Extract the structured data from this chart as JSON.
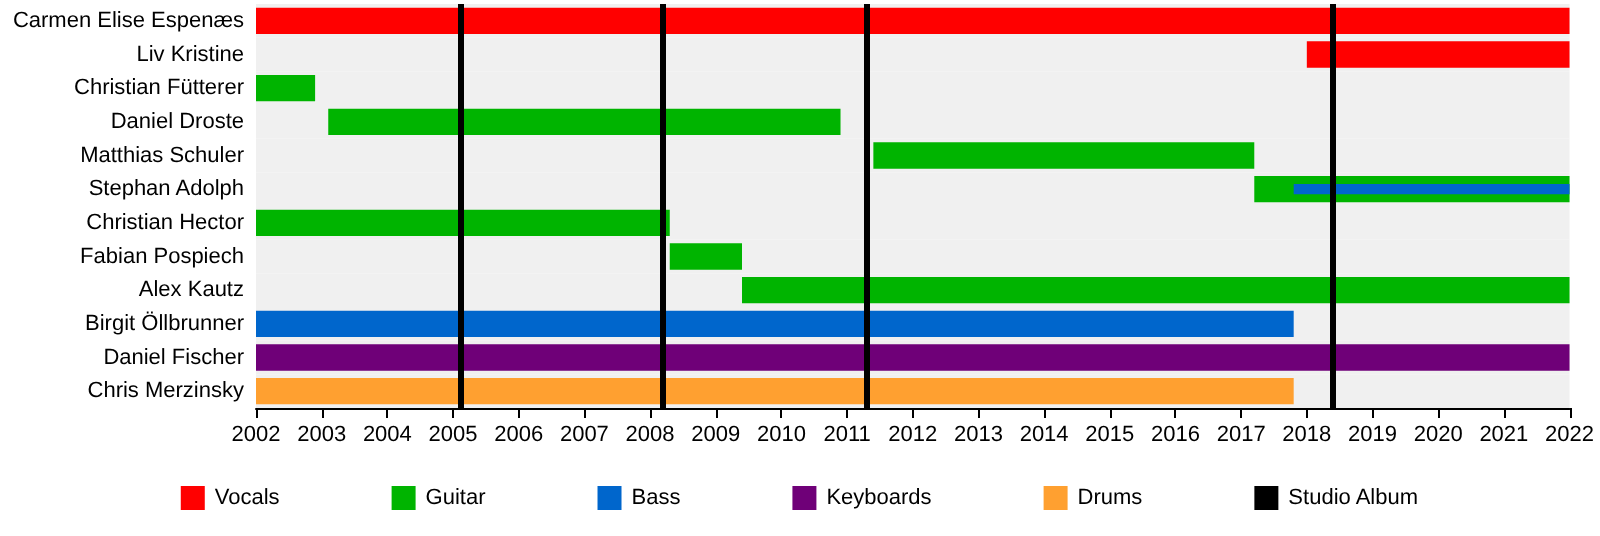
{
  "chart_data": {
    "type": "bar",
    "orientation": "horizontal",
    "categories": [
      "Carmen Elise Espenæs",
      "Liv Kristine",
      "Christian Fütterer",
      "Daniel Droste",
      "Matthias Schuler",
      "Stephan Adolph",
      "Christian Hector",
      "Fabian Pospiech",
      "Alex Kautz",
      "Birgit Öllbrunner",
      "Daniel Fischer",
      "Chris Merzinsky"
    ],
    "series": [
      {
        "name": "Vocals",
        "color": "#ff0000",
        "base": [
          2002,
          2018.0,
          null,
          null,
          null,
          null,
          null,
          null,
          null,
          null,
          null,
          null
        ],
        "values": [
          20,
          4.0,
          null,
          null,
          null,
          null,
          null,
          null,
          null,
          null,
          null,
          null
        ]
      },
      {
        "name": "Guitar",
        "color": "#00b400",
        "base": [
          null,
          null,
          2002,
          2003.1,
          2011.4,
          2017.2,
          2002,
          2008.3,
          2009.4,
          null,
          null,
          null
        ],
        "values": [
          null,
          null,
          0.9,
          7.8,
          5.8,
          4.8,
          6.3,
          1.1,
          12.6,
          null,
          null,
          null
        ]
      },
      {
        "name": "Bass",
        "color": "#0066cc",
        "base": [
          null,
          null,
          null,
          null,
          null,
          2017.8,
          null,
          null,
          null,
          2002,
          null,
          null
        ],
        "values": [
          null,
          null,
          null,
          null,
          null,
          4.2,
          null,
          null,
          null,
          15.8,
          null,
          null
        ]
      },
      {
        "name": "Keyboards",
        "color": "#6f0078",
        "base": [
          null,
          null,
          null,
          null,
          null,
          null,
          null,
          null,
          null,
          null,
          2002,
          null
        ],
        "values": [
          null,
          null,
          null,
          null,
          null,
          null,
          null,
          null,
          null,
          null,
          20,
          null
        ]
      },
      {
        "name": "Drums",
        "color": "#ffa030",
        "base": [
          null,
          null,
          null,
          null,
          null,
          null,
          null,
          null,
          null,
          null,
          null,
          2002
        ],
        "values": [
          null,
          null,
          null,
          null,
          null,
          null,
          null,
          null,
          null,
          null,
          null,
          15.8
        ]
      }
    ],
    "ref_lines": [
      {
        "axis": "x",
        "value": 2005.1,
        "label": "Studio Album",
        "color": "#000000"
      },
      {
        "axis": "x",
        "value": 2008.2,
        "color": "#000000"
      },
      {
        "axis": "x",
        "value": 2011.3,
        "color": "#000000"
      },
      {
        "axis": "x",
        "value": 2018.4,
        "color": "#000000"
      }
    ],
    "xlim": [
      2002,
      2022
    ],
    "xticks": [
      2002,
      2003,
      2004,
      2005,
      2006,
      2007,
      2008,
      2009,
      2010,
      2011,
      2012,
      2013,
      2014,
      2015,
      2016,
      2017,
      2018,
      2019,
      2020,
      2021,
      2022
    ],
    "grid": false,
    "legend": "bottom"
  }
}
